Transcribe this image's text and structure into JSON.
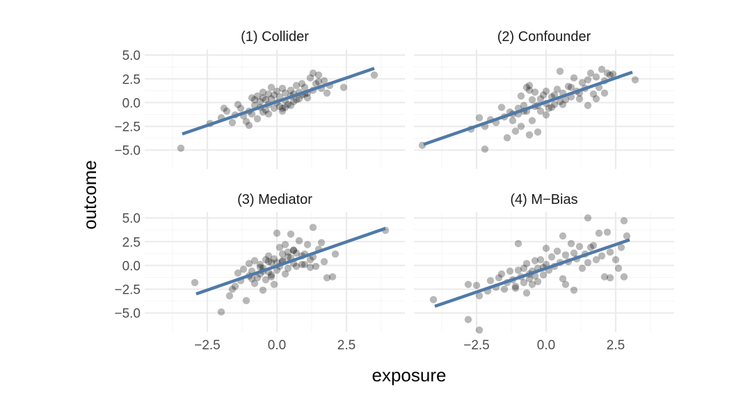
{
  "chart_data": {
    "type": "scatter",
    "facet_layout": "2x2",
    "xlabel": "exposure",
    "ylabel": "outcome",
    "xlim": [
      -4.75,
      4.6
    ],
    "ylim": [
      -7.0,
      5.6
    ],
    "x_ticks": [
      -2.5,
      0.0,
      2.5
    ],
    "x_tick_labels": [
      "−2.5",
      "0.0",
      "2.5"
    ],
    "y_ticks": [
      -5.0,
      -2.5,
      0.0,
      2.5,
      5.0
    ],
    "y_tick_labels": [
      "−5.0",
      "−2.5",
      "0.0",
      "2.5",
      "5.0"
    ],
    "grid": true,
    "point_color": "#000000",
    "point_alpha": 0.28,
    "line_color": "#4f7aa8",
    "panels": [
      {
        "title": "(1) Collider",
        "fit_line": [
          [
            -3.4,
            -3.3
          ],
          [
            3.5,
            3.6
          ]
        ],
        "points": [
          [
            -3.45,
            -4.8
          ],
          [
            -2.4,
            -2.2
          ],
          [
            -2.0,
            -1.6
          ],
          [
            -1.8,
            -0.9
          ],
          [
            -1.6,
            -2.1
          ],
          [
            -1.5,
            -1.3
          ],
          [
            -1.3,
            -0.6
          ],
          [
            -1.2,
            -1.4
          ],
          [
            -1.1,
            -2.0
          ],
          [
            -1.0,
            -0.9
          ],
          [
            -1.0,
            -2.4
          ],
          [
            -0.9,
            0.5
          ],
          [
            -0.9,
            -1.2
          ],
          [
            -0.8,
            -0.3
          ],
          [
            -0.7,
            0.7
          ],
          [
            -0.7,
            -1.7
          ],
          [
            -0.6,
            -0.5
          ],
          [
            -0.6,
            0.1
          ],
          [
            -0.5,
            1.1
          ],
          [
            -0.5,
            -1.0
          ],
          [
            -0.4,
            0.3
          ],
          [
            -0.4,
            -0.8
          ],
          [
            -0.3,
            0.9
          ],
          [
            -0.3,
            -0.2
          ],
          [
            -0.2,
            1.6
          ],
          [
            -0.2,
            0.4
          ],
          [
            -0.1,
            -0.6
          ],
          [
            -0.1,
            0.8
          ],
          [
            0.0,
            0.0
          ],
          [
            0.0,
            1.2
          ],
          [
            0.1,
            -0.4
          ],
          [
            0.1,
            0.6
          ],
          [
            0.2,
            1.5
          ],
          [
            0.2,
            -0.9
          ],
          [
            0.3,
            0.2
          ],
          [
            0.3,
            1.0
          ],
          [
            0.4,
            -0.2
          ],
          [
            0.5,
            0.7
          ],
          [
            0.5,
            1.3
          ],
          [
            0.6,
            0.1
          ],
          [
            0.7,
            1.8
          ],
          [
            0.8,
            0.4
          ],
          [
            0.8,
            1.1
          ],
          [
            0.9,
            2.0
          ],
          [
            1.0,
            0.9
          ],
          [
            1.0,
            1.6
          ],
          [
            1.1,
            0.5
          ],
          [
            1.2,
            2.6
          ],
          [
            1.3,
            1.3
          ],
          [
            1.3,
            3.1
          ],
          [
            1.4,
            2.0
          ],
          [
            1.5,
            2.9
          ],
          [
            1.6,
            1.5
          ],
          [
            1.7,
            2.3
          ],
          [
            1.8,
            1.0
          ],
          [
            1.9,
            1.8
          ],
          [
            0.5,
            -0.3
          ],
          [
            -1.9,
            -0.6
          ],
          [
            0.3,
            -0.5
          ],
          [
            2.4,
            1.6
          ],
          [
            3.5,
            2.9
          ],
          [
            -1.4,
            -0.2
          ],
          [
            0.9,
            0.8
          ],
          [
            1.5,
            2.2
          ],
          [
            -0.3,
            -1.2
          ],
          [
            0.6,
            0.9
          ],
          [
            -0.8,
            0.3
          ],
          [
            0.2,
            -0.6
          ],
          [
            1.1,
            1.0
          ],
          [
            -0.5,
            0.5
          ],
          [
            0.7,
            0.3
          ]
        ]
      },
      {
        "title": "(2) Confounder",
        "fit_line": [
          [
            -4.4,
            -4.4
          ],
          [
            3.1,
            3.2
          ]
        ],
        "points": [
          [
            -4.45,
            -4.5
          ],
          [
            -2.7,
            -2.8
          ],
          [
            -2.4,
            -1.6
          ],
          [
            -2.2,
            -2.5
          ],
          [
            -2.2,
            -4.9
          ],
          [
            -2.0,
            -1.8
          ],
          [
            -1.8,
            -2.1
          ],
          [
            -1.6,
            -0.5
          ],
          [
            -1.5,
            -1.5
          ],
          [
            -1.4,
            -3.7
          ],
          [
            -1.3,
            -1.0
          ],
          [
            -1.2,
            -1.9
          ],
          [
            -1.1,
            -3.0
          ],
          [
            -1.0,
            -0.6
          ],
          [
            -1.0,
            -1.2
          ],
          [
            -0.9,
            0.7
          ],
          [
            -0.9,
            -2.5
          ],
          [
            -0.8,
            -0.3
          ],
          [
            -0.7,
            1.6
          ],
          [
            -0.7,
            -0.9
          ],
          [
            -0.6,
            1.8
          ],
          [
            -0.6,
            -3.4
          ],
          [
            -0.5,
            0.3
          ],
          [
            -0.5,
            -1.9
          ],
          [
            -0.4,
            -0.4
          ],
          [
            -0.4,
            1.1
          ],
          [
            -0.3,
            -3.1
          ],
          [
            -0.2,
            0.4
          ],
          [
            -0.2,
            -0.9
          ],
          [
            -0.1,
            0.8
          ],
          [
            0.0,
            -0.1
          ],
          [
            0.0,
            1.2
          ],
          [
            0.1,
            -0.6
          ],
          [
            0.2,
            0.6
          ],
          [
            0.3,
            -0.2
          ],
          [
            0.4,
            1.4
          ],
          [
            0.5,
            0.1
          ],
          [
            0.5,
            3.3
          ],
          [
            0.6,
            1.0
          ],
          [
            0.7,
            0.3
          ],
          [
            0.8,
            1.7
          ],
          [
            0.9,
            0.6
          ],
          [
            1.0,
            2.6
          ],
          [
            1.1,
            1.2
          ],
          [
            1.2,
            0.4
          ],
          [
            1.3,
            2.1
          ],
          [
            1.4,
            1.5
          ],
          [
            1.5,
            2.4
          ],
          [
            1.6,
            3.1
          ],
          [
            1.7,
            0.9
          ],
          [
            1.8,
            2.7
          ],
          [
            1.9,
            1.6
          ],
          [
            2.0,
            3.5
          ],
          [
            2.1,
            2.3
          ],
          [
            2.2,
            3.1
          ],
          [
            2.3,
            2.9
          ],
          [
            2.4,
            3.0
          ],
          [
            1.5,
            -0.3
          ],
          [
            3.2,
            2.4
          ],
          [
            -0.8,
            -0.9
          ],
          [
            0.9,
            1.6
          ],
          [
            -0.3,
            -0.3
          ],
          [
            0.3,
            0.8
          ],
          [
            1.2,
            1.0
          ],
          [
            0.6,
            -0.2
          ],
          [
            -1.2,
            -1.2
          ],
          [
            0.2,
            -0.5
          ],
          [
            1.8,
            0.4
          ],
          [
            2.1,
            1.0
          ],
          [
            -0.6,
            1.3
          ],
          [
            0.0,
            -1.3
          ]
        ]
      },
      {
        "title": "(3) Mediator",
        "fit_line": [
          [
            -2.9,
            -3.0
          ],
          [
            3.9,
            3.9
          ]
        ],
        "points": [
          [
            -2.95,
            -1.8
          ],
          [
            -2.0,
            -4.9
          ],
          [
            -1.7,
            -3.2
          ],
          [
            -1.6,
            -2.5
          ],
          [
            -1.5,
            -2.2
          ],
          [
            -1.4,
            -0.8
          ],
          [
            -1.3,
            -1.6
          ],
          [
            -1.2,
            -0.4
          ],
          [
            -1.1,
            -3.7
          ],
          [
            -1.0,
            -1.1
          ],
          [
            -1.0,
            0.2
          ],
          [
            -0.9,
            -0.6
          ],
          [
            -0.8,
            -1.9
          ],
          [
            -0.8,
            0.5
          ],
          [
            -0.7,
            -1.3
          ],
          [
            -0.6,
            0.1
          ],
          [
            -0.6,
            -0.9
          ],
          [
            -0.5,
            -2.6
          ],
          [
            -0.5,
            -0.3
          ],
          [
            -0.4,
            0.6
          ],
          [
            -0.4,
            -1.5
          ],
          [
            -0.3,
            -0.7
          ],
          [
            -0.3,
            1.0
          ],
          [
            -0.2,
            -1.2
          ],
          [
            -0.2,
            0.3
          ],
          [
            -0.1,
            -2.0
          ],
          [
            -0.1,
            0.7
          ],
          [
            0.0,
            3.4
          ],
          [
            0.0,
            -0.5
          ],
          [
            0.1,
            1.9
          ],
          [
            0.1,
            -0.1
          ],
          [
            0.2,
            1.2
          ],
          [
            0.2,
            0.5
          ],
          [
            0.3,
            -0.9
          ],
          [
            0.3,
            2.2
          ],
          [
            0.4,
            1.4
          ],
          [
            0.4,
            -0.3
          ],
          [
            0.5,
            0.8
          ],
          [
            0.5,
            3.3
          ],
          [
            0.6,
            0.2
          ],
          [
            0.6,
            1.6
          ],
          [
            0.7,
            -0.1
          ],
          [
            0.8,
            2.6
          ],
          [
            0.9,
            1.0
          ],
          [
            1.0,
            0.1
          ],
          [
            1.1,
            2.2
          ],
          [
            1.2,
            0.6
          ],
          [
            1.3,
            4.0
          ],
          [
            1.3,
            0.9
          ],
          [
            1.4,
            -0.1
          ],
          [
            1.5,
            1.7
          ],
          [
            1.6,
            2.4
          ],
          [
            1.7,
            0.4
          ],
          [
            1.8,
            -1.3
          ],
          [
            2.0,
            -1.2
          ],
          [
            2.1,
            1.2
          ],
          [
            1.2,
            -0.2
          ],
          [
            3.9,
            3.7
          ],
          [
            0.6,
            1.6
          ],
          [
            -0.5,
            -0.6
          ],
          [
            0.2,
            0.4
          ],
          [
            0.9,
            0.1
          ],
          [
            -0.2,
            -1.0
          ],
          [
            0.7,
            1.3
          ],
          [
            -0.9,
            -1.4
          ],
          [
            0.4,
            0.9
          ],
          [
            0.0,
            0.3
          ],
          [
            -0.6,
            -0.2
          ],
          [
            1.0,
            1.2
          ],
          [
            -0.3,
            0.4
          ]
        ]
      },
      {
        "title": "(4) M−Bias",
        "fit_line": [
          [
            -4.0,
            -4.3
          ],
          [
            3.0,
            2.7
          ]
        ],
        "points": [
          [
            -4.05,
            -3.6
          ],
          [
            -2.8,
            -2.0
          ],
          [
            -2.8,
            -5.7
          ],
          [
            -2.5,
            -2.1
          ],
          [
            -2.4,
            -3.2
          ],
          [
            -2.4,
            -6.8
          ],
          [
            -2.1,
            -2.7
          ],
          [
            -2.0,
            -1.6
          ],
          [
            -1.8,
            -2.3
          ],
          [
            -1.7,
            -1.3
          ],
          [
            -1.6,
            -0.9
          ],
          [
            -1.5,
            -2.5
          ],
          [
            -1.4,
            -1.8
          ],
          [
            -1.3,
            -0.6
          ],
          [
            -1.2,
            -1.5
          ],
          [
            -1.1,
            -2.2
          ],
          [
            -1.0,
            -0.5
          ],
          [
            -1.0,
            2.3
          ],
          [
            -0.9,
            -1.2
          ],
          [
            -0.8,
            -0.3
          ],
          [
            -0.8,
            -1.8
          ],
          [
            -0.7,
            0.2
          ],
          [
            -0.7,
            -2.9
          ],
          [
            -0.6,
            -0.9
          ],
          [
            -0.6,
            -1.4
          ],
          [
            -0.5,
            -0.6
          ],
          [
            -0.5,
            -2.0
          ],
          [
            -0.4,
            0.5
          ],
          [
            -0.4,
            -1.1
          ],
          [
            -0.3,
            -0.3
          ],
          [
            -0.3,
            -1.7
          ],
          [
            -0.2,
            0.6
          ],
          [
            -0.1,
            -0.2
          ],
          [
            -0.1,
            -1.0
          ],
          [
            0.0,
            1.8
          ],
          [
            0.0,
            0.1
          ],
          [
            0.1,
            -0.5
          ],
          [
            0.2,
            0.9
          ],
          [
            0.3,
            -0.1
          ],
          [
            0.4,
            1.5
          ],
          [
            0.5,
            0.3
          ],
          [
            0.6,
            3.1
          ],
          [
            0.6,
            -1.4
          ],
          [
            0.7,
            1.1
          ],
          [
            0.8,
            0.4
          ],
          [
            0.9,
            2.3
          ],
          [
            1.0,
            -2.6
          ],
          [
            1.0,
            1.3
          ],
          [
            1.1,
            0.7
          ],
          [
            1.2,
            2.0
          ],
          [
            1.3,
            -0.3
          ],
          [
            1.4,
            1.2
          ],
          [
            1.5,
            5.0
          ],
          [
            1.5,
            0.3
          ],
          [
            1.6,
            1.9
          ],
          [
            1.7,
            2.1
          ],
          [
            1.8,
            0.6
          ],
          [
            1.9,
            3.4
          ],
          [
            2.0,
            1.0
          ],
          [
            2.1,
            -1.2
          ],
          [
            2.2,
            3.5
          ],
          [
            2.3,
            1.4
          ],
          [
            2.5,
            0.6
          ],
          [
            2.6,
            -0.3
          ],
          [
            2.7,
            1.9
          ],
          [
            2.8,
            4.7
          ],
          [
            2.9,
            3.1
          ],
          [
            2.8,
            -1.2
          ],
          [
            2.3,
            -1.3
          ],
          [
            0.7,
            -2.0
          ],
          [
            -1.1,
            -2.4
          ]
        ]
      }
    ]
  }
}
